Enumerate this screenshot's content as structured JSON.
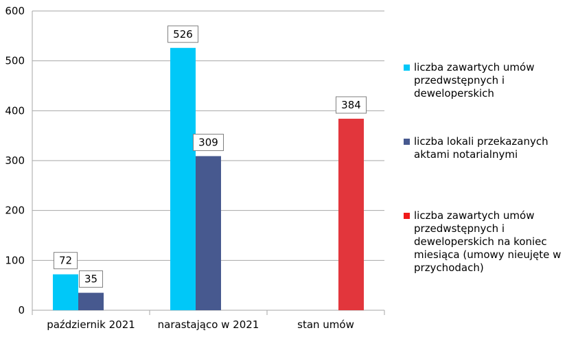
{
  "chart_data": {
    "type": "bar",
    "categories": [
      "październik 2021",
      "narastająco w 2021",
      "stan umów"
    ],
    "series": [
      {
        "name": "liczba zawartych umów przedwstępnych i deweloperskich",
        "color": "#00c8f8",
        "values": [
          72,
          526,
          null
        ]
      },
      {
        "name": "liczba lokali przekazanych aktami notarialnymi",
        "color": "#47598f",
        "values": [
          35,
          309,
          null
        ]
      },
      {
        "name": "liczba zawartych umów przedwstępnych i deweloperskich na koniec miesiąca (umowy nieujęte w przychodach)",
        "color": "#e2363c",
        "values": [
          null,
          null,
          384
        ]
      }
    ],
    "ylim": [
      0,
      600
    ],
    "yticks": [
      0,
      100,
      200,
      300,
      400,
      500,
      600
    ],
    "grid": true,
    "legend": "right",
    "legend_marker_colors": [
      "#00c8f8",
      "#47598f",
      "#f01a1a"
    ]
  }
}
